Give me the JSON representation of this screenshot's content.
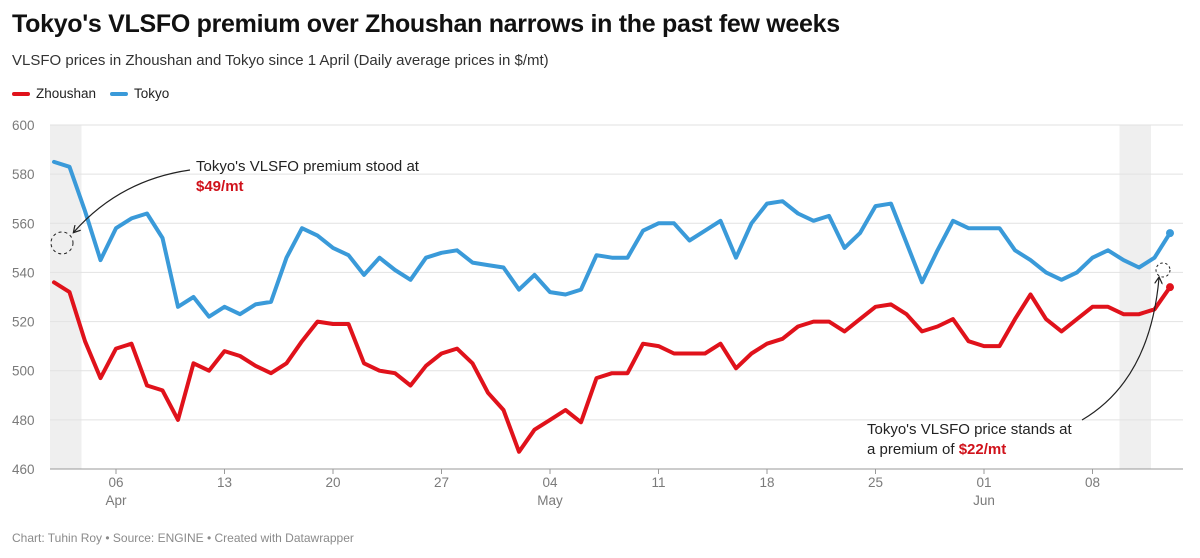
{
  "title": "Tokyo's VLSFO premium over Zhoushan narrows in the past few weeks",
  "subtitle": "VLSFO prices in Zhoushan and Tokyo since 1 April (Daily average prices in $/mt)",
  "footer": "Chart: Tuhin Roy • Source: ENGINE • Created with Datawrapper",
  "colors": {
    "zhoushan": "#e0121b",
    "tokyo": "#3a9ad9",
    "highlight_band": "#efefef",
    "annotation_value": "#d0121b"
  },
  "chart_data": {
    "type": "line",
    "ylim": [
      460,
      600
    ],
    "y_ticks": [
      600,
      580,
      560,
      540,
      520,
      500,
      480,
      460
    ],
    "x_range": [
      "2024-04-02",
      "2024-06-11"
    ],
    "x_ticks": [
      {
        "date": "2024-04-06",
        "day": "06",
        "month": "Apr"
      },
      {
        "date": "2024-04-13",
        "day": "13",
        "month": ""
      },
      {
        "date": "2024-04-20",
        "day": "20",
        "month": ""
      },
      {
        "date": "2024-04-27",
        "day": "27",
        "month": ""
      },
      {
        "date": "2024-05-04",
        "day": "04",
        "month": "May"
      },
      {
        "date": "2024-05-11",
        "day": "11",
        "month": ""
      },
      {
        "date": "2024-05-18",
        "day": "18",
        "month": ""
      },
      {
        "date": "2024-05-25",
        "day": "25",
        "month": ""
      },
      {
        "date": "2024-06-01",
        "day": "01",
        "month": "Jun"
      },
      {
        "date": "2024-06-08",
        "day": "08",
        "month": ""
      }
    ],
    "highlight_ranges": [
      [
        "2024-04-02",
        "2024-04-03"
      ],
      [
        "2024-06-10",
        "2024-06-11"
      ]
    ],
    "grid": true,
    "legend_position": "top-left",
    "series": [
      {
        "name": "Zhoushan",
        "points": [
          [
            "2024-04-02",
            536
          ],
          [
            "2024-04-03",
            532
          ],
          [
            "2024-04-04",
            512
          ],
          [
            "2024-04-05",
            497
          ],
          [
            "2024-04-06",
            509
          ],
          [
            "2024-04-07",
            511
          ],
          [
            "2024-04-08",
            494
          ],
          [
            "2024-04-09",
            492
          ],
          [
            "2024-04-10",
            480
          ],
          [
            "2024-04-11",
            503
          ],
          [
            "2024-04-12",
            500
          ],
          [
            "2024-04-13",
            508
          ],
          [
            "2024-04-14",
            506
          ],
          [
            "2024-04-15",
            502
          ],
          [
            "2024-04-16",
            499
          ],
          [
            "2024-04-17",
            503
          ],
          [
            "2024-04-18",
            512
          ],
          [
            "2024-04-19",
            520
          ],
          [
            "2024-04-20",
            519
          ],
          [
            "2024-04-21",
            519
          ],
          [
            "2024-04-22",
            503
          ],
          [
            "2024-04-23",
            500
          ],
          [
            "2024-04-24",
            499
          ],
          [
            "2024-04-25",
            494
          ],
          [
            "2024-04-26",
            502
          ],
          [
            "2024-04-27",
            507
          ],
          [
            "2024-04-28",
            509
          ],
          [
            "2024-04-29",
            503
          ],
          [
            "2024-04-30",
            491
          ],
          [
            "2024-05-01",
            484
          ],
          [
            "2024-05-02",
            467
          ],
          [
            "2024-05-03",
            476
          ],
          [
            "2024-05-04",
            480
          ],
          [
            "2024-05-05",
            484
          ],
          [
            "2024-05-06",
            479
          ],
          [
            "2024-05-07",
            497
          ],
          [
            "2024-05-08",
            499
          ],
          [
            "2024-05-09",
            499
          ],
          [
            "2024-05-10",
            511
          ],
          [
            "2024-05-11",
            510
          ],
          [
            "2024-05-12",
            507
          ],
          [
            "2024-05-13",
            507
          ],
          [
            "2024-05-14",
            507
          ],
          [
            "2024-05-15",
            511
          ],
          [
            "2024-05-16",
            501
          ],
          [
            "2024-05-17",
            507
          ],
          [
            "2024-05-18",
            511
          ],
          [
            "2024-05-19",
            513
          ],
          [
            "2024-05-20",
            518
          ],
          [
            "2024-05-21",
            520
          ],
          [
            "2024-05-22",
            520
          ],
          [
            "2024-05-23",
            516
          ],
          [
            "2024-05-24",
            521
          ],
          [
            "2024-05-25",
            526
          ],
          [
            "2024-05-26",
            527
          ],
          [
            "2024-05-27",
            523
          ],
          [
            "2024-05-28",
            516
          ],
          [
            "2024-05-29",
            518
          ],
          [
            "2024-05-30",
            521
          ],
          [
            "2024-05-31",
            512
          ],
          [
            "2024-06-01",
            510
          ],
          [
            "2024-06-02",
            510
          ],
          [
            "2024-06-03",
            521
          ],
          [
            "2024-06-04",
            531
          ],
          [
            "2024-06-05",
            521
          ],
          [
            "2024-06-06",
            516
          ],
          [
            "2024-06-07",
            521
          ],
          [
            "2024-06-08",
            526
          ],
          [
            "2024-06-09",
            526
          ],
          [
            "2024-06-10",
            523
          ],
          [
            "2024-06-11",
            523
          ],
          [
            "2024-06-12",
            525
          ],
          [
            "2024-06-13",
            534
          ]
        ]
      },
      {
        "name": "Tokyo",
        "points": [
          [
            "2024-04-02",
            585
          ],
          [
            "2024-04-03",
            583
          ],
          [
            "2024-04-04",
            565
          ],
          [
            "2024-04-05",
            545
          ],
          [
            "2024-04-06",
            558
          ],
          [
            "2024-04-07",
            562
          ],
          [
            "2024-04-08",
            564
          ],
          [
            "2024-04-09",
            554
          ],
          [
            "2024-04-10",
            526
          ],
          [
            "2024-04-11",
            530
          ],
          [
            "2024-04-12",
            522
          ],
          [
            "2024-04-13",
            526
          ],
          [
            "2024-04-14",
            523
          ],
          [
            "2024-04-15",
            527
          ],
          [
            "2024-04-16",
            528
          ],
          [
            "2024-04-17",
            546
          ],
          [
            "2024-04-18",
            558
          ],
          [
            "2024-04-19",
            555
          ],
          [
            "2024-04-20",
            550
          ],
          [
            "2024-04-21",
            547
          ],
          [
            "2024-04-22",
            539
          ],
          [
            "2024-04-23",
            546
          ],
          [
            "2024-04-24",
            541
          ],
          [
            "2024-04-25",
            537
          ],
          [
            "2024-04-26",
            546
          ],
          [
            "2024-04-27",
            548
          ],
          [
            "2024-04-28",
            549
          ],
          [
            "2024-04-29",
            544
          ],
          [
            "2024-04-30",
            543
          ],
          [
            "2024-05-01",
            542
          ],
          [
            "2024-05-02",
            533
          ],
          [
            "2024-05-03",
            539
          ],
          [
            "2024-05-04",
            532
          ],
          [
            "2024-05-05",
            531
          ],
          [
            "2024-05-06",
            533
          ],
          [
            "2024-05-07",
            547
          ],
          [
            "2024-05-08",
            546
          ],
          [
            "2024-05-09",
            546
          ],
          [
            "2024-05-10",
            557
          ],
          [
            "2024-05-11",
            560
          ],
          [
            "2024-05-12",
            560
          ],
          [
            "2024-05-13",
            553
          ],
          [
            "2024-05-14",
            557
          ],
          [
            "2024-05-15",
            561
          ],
          [
            "2024-05-16",
            546
          ],
          [
            "2024-05-17",
            560
          ],
          [
            "2024-05-18",
            568
          ],
          [
            "2024-05-19",
            569
          ],
          [
            "2024-05-20",
            564
          ],
          [
            "2024-05-21",
            561
          ],
          [
            "2024-05-22",
            563
          ],
          [
            "2024-05-23",
            550
          ],
          [
            "2024-05-24",
            556
          ],
          [
            "2024-05-25",
            567
          ],
          [
            "2024-05-26",
            568
          ],
          [
            "2024-05-27",
            552
          ],
          [
            "2024-05-28",
            536
          ],
          [
            "2024-05-29",
            549
          ],
          [
            "2024-05-30",
            561
          ],
          [
            "2024-05-31",
            558
          ],
          [
            "2024-06-01",
            558
          ],
          [
            "2024-06-02",
            558
          ],
          [
            "2024-06-03",
            549
          ],
          [
            "2024-06-04",
            545
          ],
          [
            "2024-06-05",
            540
          ],
          [
            "2024-06-06",
            537
          ],
          [
            "2024-06-07",
            540
          ],
          [
            "2024-06-08",
            546
          ],
          [
            "2024-06-09",
            549
          ],
          [
            "2024-06-10",
            545
          ],
          [
            "2024-06-11",
            542
          ],
          [
            "2024-06-12",
            546
          ],
          [
            "2024-06-13",
            556
          ]
        ]
      }
    ],
    "annotations": [
      {
        "id": "start",
        "date": "2024-04-02",
        "y": 552,
        "text": "Tokyo's VLSFO premium stood at",
        "value": "$49/mt"
      },
      {
        "id": "end",
        "date": "2024-06-13",
        "y": 541,
        "text_line1": "Tokyo's VLSFO price stands at",
        "text_line2_prefix": "a premium of",
        "value": "$22/mt"
      }
    ]
  }
}
